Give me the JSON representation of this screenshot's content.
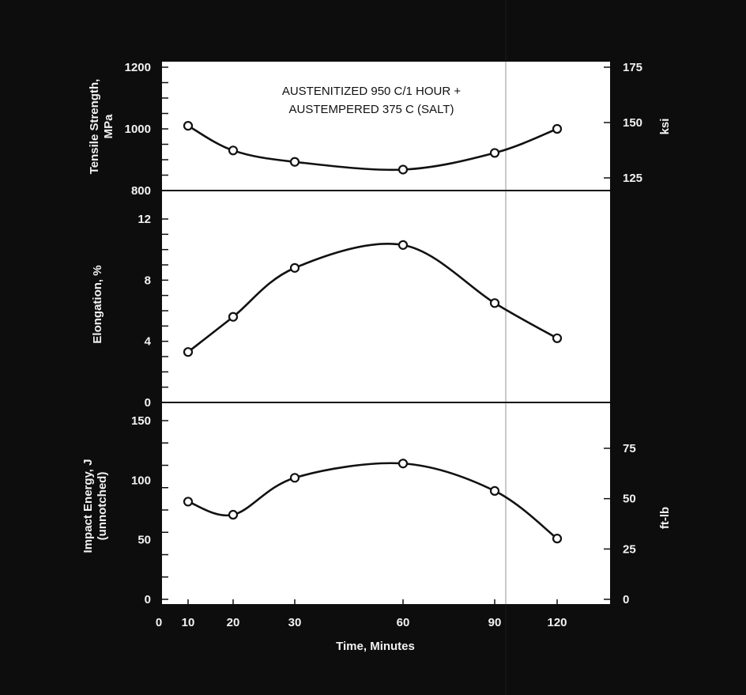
{
  "chart_data": [
    {
      "type": "line",
      "title_lines": [
        "AUSTENITIZED 950 C/1 HOUR +",
        "AUSTEMPERED 375 C (SALT)"
      ],
      "ylabel_lines": [
        "Tensile Strength,",
        "MPa"
      ],
      "y2label": "ksi",
      "ylim": [
        800,
        1200
      ],
      "yticks": [
        "1200",
        "1000",
        "800"
      ],
      "ytick_values": [
        1200,
        1000,
        800
      ],
      "y2ticks": [
        "175",
        "150",
        "125"
      ],
      "y2tick_values": [
        175,
        150,
        125
      ],
      "x": [
        10,
        20,
        30,
        60,
        90,
        120
      ],
      "values": [
        1010,
        930,
        893,
        868,
        922,
        1000
      ]
    },
    {
      "type": "line",
      "ylabel": "Elongation, %",
      "ylim": [
        0,
        12
      ],
      "yticks": [
        "12",
        "8",
        "4",
        "0"
      ],
      "ytick_values": [
        12,
        8,
        4,
        0
      ],
      "x": [
        10,
        20,
        30,
        60,
        90,
        120
      ],
      "values": [
        3.3,
        5.6,
        8.8,
        10.3,
        6.5,
        4.2
      ]
    },
    {
      "type": "line",
      "ylabel_lines": [
        "Impact Energy, J",
        "(unnotched)"
      ],
      "y2label": "ft-lb",
      "ylim": [
        0,
        150
      ],
      "yticks": [
        "150",
        "100",
        "50",
        "0"
      ],
      "ytick_values": [
        150,
        100,
        50,
        0
      ],
      "y2ticks": [
        "75",
        "50",
        "25",
        "0"
      ],
      "y2tick_values": [
        75,
        50,
        25,
        0
      ],
      "x": [
        10,
        20,
        30,
        60,
        90,
        120
      ],
      "values": [
        82,
        71,
        102,
        114,
        91,
        51
      ]
    }
  ],
  "x_axis": {
    "title": "Time, Minutes",
    "ticks": [
      "0",
      "10",
      "20",
      "30",
      "60",
      "90",
      "120"
    ],
    "tick_values": [
      0,
      10,
      20,
      30,
      60,
      90,
      120
    ]
  },
  "colors": {
    "background": "#0d0d0d",
    "plot": "#ffffff",
    "ink": "#111111",
    "label": "#f2f2f2"
  }
}
